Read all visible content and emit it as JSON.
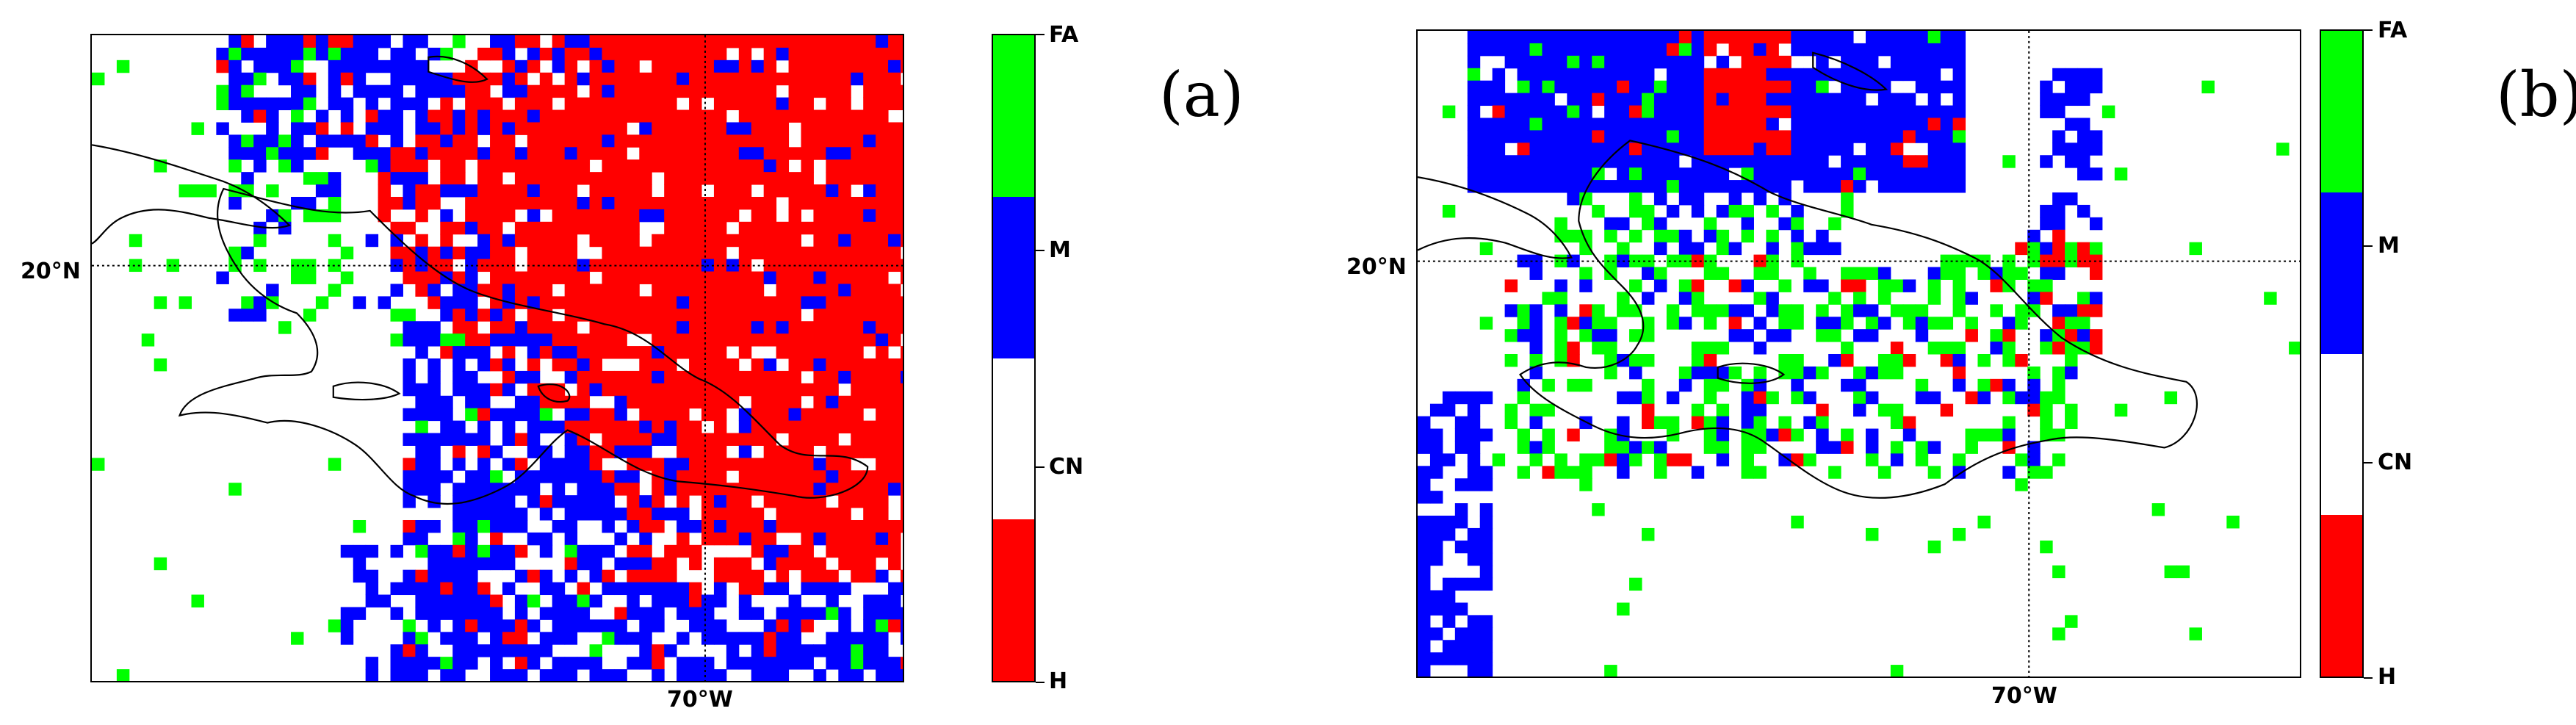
{
  "colors": {
    "FA": "#00ff00",
    "M": "#0000ff",
    "CN": "#ffffff",
    "H": "#ff0000",
    "coast": "#000000"
  },
  "legend_classes": [
    "FA",
    "M",
    "CN",
    "H"
  ],
  "axis_labels": {
    "lat": "20°N",
    "lon": "70°W"
  },
  "panels": [
    {
      "letter": "(a)",
      "description_classes_dominant": [
        "H",
        "M",
        "FA",
        "CN"
      ]
    },
    {
      "letter": "(b)",
      "description_classes_dominant": [
        "M",
        "FA",
        "H",
        "CN"
      ]
    }
  ]
}
